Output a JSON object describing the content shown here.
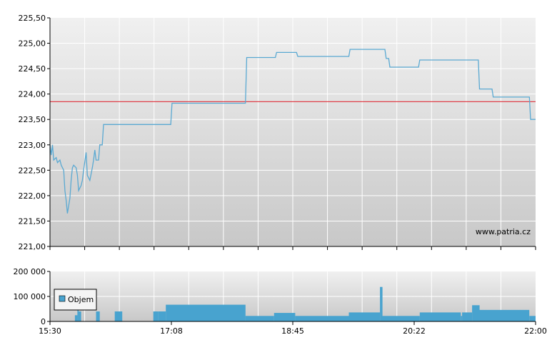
{
  "watermark": "www.patria.cz",
  "colors": {
    "price_line": "#5aa9d2",
    "reference_line": "#e0303a",
    "volume_bar": "#48a3cf",
    "grid": "#ffffff",
    "axis": "#000000",
    "plot_top": "#f0f0f0",
    "plot_bottom": "#c8c8c8"
  },
  "chart_data": [
    {
      "type": "line",
      "title": "",
      "xlabel": "",
      "ylabel": "",
      "x_ticks": [
        "15:30",
        "17:08",
        "18:45",
        "20:22",
        "22:00"
      ],
      "y_ticks": [
        "221,00",
        "221,50",
        "222,00",
        "222,50",
        "223,00",
        "223,50",
        "224,00",
        "224,50",
        "225,00",
        "225,50"
      ],
      "ylim": [
        221.0,
        225.5
      ],
      "grid": true,
      "reference_line": 223.85,
      "series": [
        {
          "points": [
            [
              "15:30",
              223.0
            ],
            [
              "15:31",
              222.8
            ],
            [
              "15:32",
              223.0
            ],
            [
              "15:33",
              222.7
            ],
            [
              "15:35",
              222.75
            ],
            [
              "15:36",
              222.65
            ],
            [
              "15:38",
              222.7
            ],
            [
              "15:39",
              222.6
            ],
            [
              "15:41",
              222.5
            ],
            [
              "15:42",
              222.1
            ],
            [
              "15:43",
              221.9
            ],
            [
              "15:44",
              221.65
            ],
            [
              "15:46",
              221.95
            ],
            [
              "15:47",
              222.3
            ],
            [
              "15:48",
              222.55
            ],
            [
              "15:49",
              222.6
            ],
            [
              "15:51",
              222.55
            ],
            [
              "15:52",
              222.4
            ],
            [
              "15:53",
              222.1
            ],
            [
              "15:55",
              222.2
            ],
            [
              "15:56",
              222.3
            ],
            [
              "15:57",
              222.5
            ],
            [
              "15:59",
              222.85
            ],
            [
              "16:00",
              222.4
            ],
            [
              "16:01",
              222.35
            ],
            [
              "16:02",
              222.3
            ],
            [
              "16:04",
              222.55
            ],
            [
              "16:05",
              222.7
            ],
            [
              "16:06",
              222.9
            ],
            [
              "16:07",
              222.7
            ],
            [
              "16:09",
              222.7
            ],
            [
              "16:10",
              223.0
            ],
            [
              "16:12",
              223.0
            ],
            [
              "16:13",
              223.4
            ],
            [
              "17:07",
              223.4
            ],
            [
              "17:08",
              223.82
            ],
            [
              "18:07",
              223.82
            ],
            [
              "18:08",
              224.72
            ],
            [
              "18:31",
              224.72
            ],
            [
              "18:32",
              224.82
            ],
            [
              "18:48",
              224.82
            ],
            [
              "18:49",
              224.74
            ],
            [
              "19:30",
              224.74
            ],
            [
              "19:31",
              224.88
            ],
            [
              "19:59",
              224.88
            ],
            [
              "20:00",
              224.7
            ],
            [
              "20:02",
              224.7
            ],
            [
              "20:03",
              224.53
            ],
            [
              "20:26",
              224.53
            ],
            [
              "20:27",
              224.67
            ],
            [
              "21:14",
              224.67
            ],
            [
              "21:15",
              224.1
            ],
            [
              "21:25",
              224.1
            ],
            [
              "21:26",
              223.94
            ],
            [
              "21:55",
              223.94
            ],
            [
              "21:56",
              223.5
            ],
            [
              "22:00",
              223.5
            ]
          ]
        }
      ]
    },
    {
      "type": "bar",
      "title": "",
      "xlabel": "",
      "ylabel": "",
      "x_ticks": [
        "15:30",
        "17:08",
        "18:45",
        "20:22",
        "22:00"
      ],
      "y_ticks": [
        "0",
        "100 000",
        "200 000"
      ],
      "ylim": [
        0,
        200000
      ],
      "legend": {
        "label": "Objem",
        "position": "left"
      },
      "series": [
        {
          "name": "Objem",
          "bars": [
            {
              "start": "15:50",
              "end": "15:52",
              "value": 25000
            },
            {
              "start": "15:52",
              "end": "15:53",
              "value": 60000
            },
            {
              "start": "15:53",
              "end": "15:55",
              "value": 40000
            },
            {
              "start": "16:07",
              "end": "16:10",
              "value": 40000
            },
            {
              "start": "16:22",
              "end": "16:28",
              "value": 40000
            },
            {
              "start": "16:53",
              "end": "16:57",
              "value": 40000
            },
            {
              "start": "16:57",
              "end": "17:03",
              "value": 40000
            },
            {
              "start": "17:03",
              "end": "18:07",
              "value": 67000
            },
            {
              "start": "18:07",
              "end": "18:30",
              "value": 22000
            },
            {
              "start": "18:30",
              "end": "18:47",
              "value": 34000
            },
            {
              "start": "18:47",
              "end": "19:30",
              "value": 22000
            },
            {
              "start": "19:30",
              "end": "19:55",
              "value": 36000
            },
            {
              "start": "19:55",
              "end": "19:57",
              "value": 138000
            },
            {
              "start": "19:57",
              "end": "20:27",
              "value": 22000
            },
            {
              "start": "20:27",
              "end": "21:00",
              "value": 36000
            },
            {
              "start": "21:00",
              "end": "21:01",
              "value": 22000
            },
            {
              "start": "21:01",
              "end": "21:09",
              "value": 36000
            },
            {
              "start": "21:09",
              "end": "21:15",
              "value": 65000
            },
            {
              "start": "21:15",
              "end": "21:55",
              "value": 46000
            },
            {
              "start": "21:55",
              "end": "22:00",
              "value": 22000
            }
          ]
        }
      ]
    }
  ]
}
